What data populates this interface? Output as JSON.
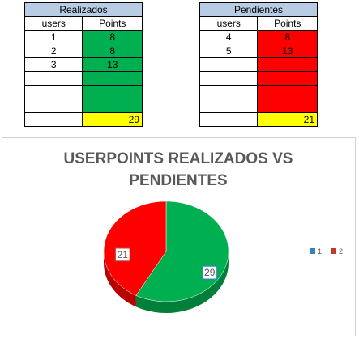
{
  "left_table": {
    "header": "Realizados",
    "col_users": "users",
    "col_points": "Points",
    "rows": [
      {
        "users": "1",
        "points": "8"
      },
      {
        "users": "2",
        "points": "8"
      },
      {
        "users": "3",
        "points": "13"
      },
      {
        "users": "",
        "points": ""
      },
      {
        "users": "",
        "points": ""
      },
      {
        "users": "",
        "points": ""
      }
    ],
    "total": "29",
    "fill_color": "#00b050",
    "total_color": "#ffff00",
    "header_color": "#b8cce4"
  },
  "right_table": {
    "header": "Pendientes",
    "col_users": "users",
    "col_points": "Points",
    "rows": [
      {
        "users": "4",
        "points": "8"
      },
      {
        "users": "5",
        "points": "13"
      },
      {
        "users": "",
        "points": ""
      },
      {
        "users": "",
        "points": ""
      },
      {
        "users": "",
        "points": ""
      },
      {
        "users": "",
        "points": ""
      }
    ],
    "total": "21",
    "fill_color": "#ff0000",
    "total_color": "#ffff00",
    "header_color": "#b8cce4"
  },
  "chart_data": {
    "type": "pie",
    "title_line1": "USERPOINTS REALIZADOS VS",
    "title_line2": "PENDIENTES",
    "categories": [
      "1",
      "2"
    ],
    "values": [
      29,
      21
    ],
    "colors": [
      "#00b050",
      "#ff0000"
    ],
    "legend_colors": [
      "#2e86c1",
      "#c0392b"
    ],
    "legend_position": "right",
    "three_d": true
  }
}
